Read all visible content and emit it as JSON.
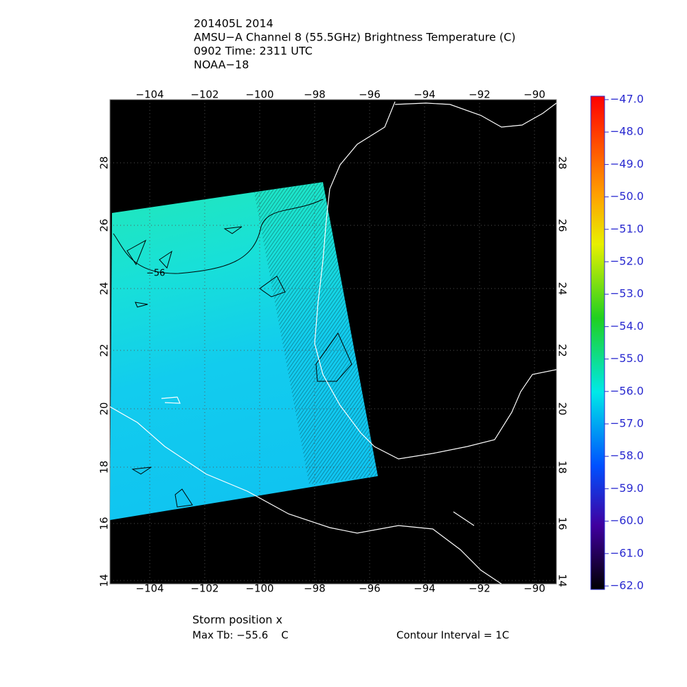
{
  "header": {
    "lines": [
      "201405L 2014",
      "AMSU−A Channel 8 (55.5GHz) Brightness Temperature (C)",
      "0902 Time: 2311 UTC",
      "NOAA−18"
    ]
  },
  "map": {
    "lon_ticks": [
      "−104",
      "−102",
      "−100",
      "−98",
      "−96",
      "−94",
      "−92",
      "−90"
    ],
    "lat_ticks": [
      "28",
      "26",
      "24",
      "22",
      "20",
      "18",
      "16",
      "14"
    ],
    "contour_label": "−56"
  },
  "colorbar": {
    "labels": [
      "−47.0",
      "−48.0",
      "−49.0",
      "−50.0",
      "−51.0",
      "−52.0",
      "−53.0",
      "−54.0",
      "−55.0",
      "−56.0",
      "−57.0",
      "−58.0",
      "−59.0",
      "−60.0",
      "−61.0",
      "−62.0"
    ]
  },
  "footer": {
    "storm_position": "Storm position x",
    "max_tb": "Max Tb: −55.6    C",
    "contour_interval": "Contour Interval = 1C"
  }
}
